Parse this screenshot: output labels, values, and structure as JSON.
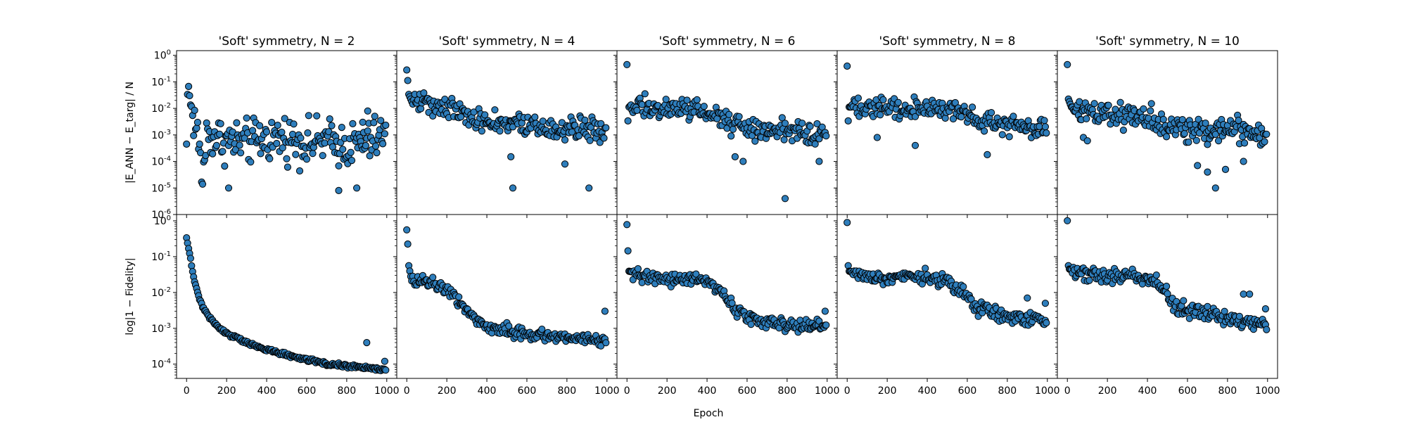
{
  "figure": {
    "xlabel": "Epoch",
    "marker_color": "#2e7ebc",
    "marker_edge_color": "#000000"
  },
  "chart_data": [
    {
      "type": "scatter",
      "row": "top",
      "title": "'Soft' symmetry, N = 2",
      "xlabel": "",
      "ylabel": "|E_ANN − E_targ| / N",
      "xlim": [
        -50,
        1050
      ],
      "ylim": [
        1e-06,
        1.5
      ],
      "yscale": "log",
      "xticks": [
        0,
        200,
        400,
        600,
        800,
        1000
      ],
      "yticks": [
        "10^0",
        "10^-1",
        "10^-2",
        "10^-3",
        "10^-4",
        "10^-5",
        "10^-6"
      ],
      "profile": [
        [
          0,
          0.0004
        ],
        [
          5,
          0.03
        ],
        [
          10,
          0.06
        ],
        [
          20,
          0.012
        ],
        [
          30,
          0.006
        ],
        [
          50,
          0.002
        ],
        [
          70,
          0.0001
        ],
        [
          80,
          2e-05
        ],
        [
          100,
          0.001
        ],
        [
          200,
          0.0006
        ],
        [
          300,
          0.0005
        ],
        [
          400,
          0.0007
        ],
        [
          500,
          0.0008
        ],
        [
          600,
          0.0005
        ],
        [
          700,
          0.0006
        ],
        [
          800,
          0.0004
        ],
        [
          900,
          0.0005
        ],
        [
          1000,
          0.0012
        ]
      ],
      "scatter_spread_decades": 2.5,
      "outliers": [
        [
          210,
          1e-05
        ],
        [
          760,
          8e-06
        ],
        [
          850,
          1e-05
        ],
        [
          880,
          0.003
        ],
        [
          905,
          0.008
        ]
      ]
    },
    {
      "type": "scatter",
      "row": "top",
      "title": "'Soft' symmetry, N = 4",
      "xlabel": "",
      "ylabel": "",
      "xlim": [
        -50,
        1050
      ],
      "ylim": [
        1e-06,
        1.5
      ],
      "yscale": "log",
      "xticks": [
        0,
        200,
        400,
        600,
        800,
        1000
      ],
      "yticks": [],
      "profile": [
        [
          0,
          0.25
        ],
        [
          5,
          0.1
        ],
        [
          10,
          0.03
        ],
        [
          20,
          0.02
        ],
        [
          100,
          0.018
        ],
        [
          200,
          0.012
        ],
        [
          300,
          0.006
        ],
        [
          400,
          0.003
        ],
        [
          500,
          0.0025
        ],
        [
          600,
          0.002
        ],
        [
          700,
          0.0018
        ],
        [
          800,
          0.0018
        ],
        [
          900,
          0.0018
        ],
        [
          1000,
          0.0018
        ]
      ],
      "scatter_spread_decades": 1.3,
      "outliers": [
        [
          520,
          0.00015
        ],
        [
          530,
          1e-05
        ],
        [
          790,
          8e-05
        ],
        [
          910,
          1e-05
        ]
      ]
    },
    {
      "type": "scatter",
      "row": "top",
      "title": "'Soft' symmetry, N = 6",
      "xlabel": "",
      "ylabel": "",
      "xlim": [
        -50,
        1050
      ],
      "ylim": [
        1e-06,
        1.5
      ],
      "yscale": "log",
      "xticks": [
        0,
        200,
        400,
        600,
        800,
        1000
      ],
      "yticks": [],
      "profile": [
        [
          0,
          0.4
        ],
        [
          5,
          0.003
        ],
        [
          10,
          0.01
        ],
        [
          20,
          0.012
        ],
        [
          200,
          0.01
        ],
        [
          400,
          0.008
        ],
        [
          500,
          0.003
        ],
        [
          600,
          0.002
        ],
        [
          700,
          0.0015
        ],
        [
          800,
          0.0015
        ],
        [
          1000,
          0.0012
        ]
      ],
      "scatter_spread_decades": 1.2,
      "outliers": [
        [
          540,
          0.00015
        ],
        [
          580,
          0.0001
        ],
        [
          790,
          4e-06
        ],
        [
          960,
          0.0001
        ]
      ]
    },
    {
      "type": "scatter",
      "row": "top",
      "title": "'Soft' symmetry, N = 8",
      "xlabel": "",
      "ylabel": "",
      "xlim": [
        -50,
        1050
      ],
      "ylim": [
        1e-06,
        1.5
      ],
      "yscale": "log",
      "xticks": [
        0,
        200,
        400,
        600,
        800,
        1000
      ],
      "yticks": [],
      "profile": [
        [
          0,
          0.35
        ],
        [
          5,
          0.003
        ],
        [
          10,
          0.01
        ],
        [
          100,
          0.01
        ],
        [
          300,
          0.01
        ],
        [
          500,
          0.01
        ],
        [
          600,
          0.006
        ],
        [
          700,
          0.003
        ],
        [
          800,
          0.0025
        ],
        [
          900,
          0.002
        ],
        [
          1000,
          0.002
        ]
      ],
      "scatter_spread_decades": 1.1,
      "outliers": [
        [
          150,
          0.0008
        ],
        [
          340,
          0.0004
        ],
        [
          700,
          0.00018
        ]
      ]
    },
    {
      "type": "scatter",
      "row": "top",
      "title": "'Soft' symmetry, N = 10",
      "xlabel": "",
      "ylabel": "",
      "xlim": [
        -50,
        1050
      ],
      "ylim": [
        1e-06,
        1.5
      ],
      "yscale": "log",
      "xticks": [
        0,
        200,
        400,
        600,
        800,
        1000
      ],
      "yticks": [],
      "profile": [
        [
          0,
          0.4
        ],
        [
          5,
          0.02
        ],
        [
          20,
          0.01
        ],
        [
          200,
          0.006
        ],
        [
          400,
          0.004
        ],
        [
          500,
          0.002
        ],
        [
          600,
          0.0015
        ],
        [
          700,
          0.0012
        ],
        [
          800,
          0.0015
        ],
        [
          900,
          0.0012
        ],
        [
          1000,
          0.001
        ]
      ],
      "scatter_spread_decades": 1.4,
      "outliers": [
        [
          80,
          0.0008
        ],
        [
          100,
          0.0006
        ],
        [
          650,
          7e-05
        ],
        [
          700,
          4e-05
        ],
        [
          740,
          1e-05
        ],
        [
          790,
          5e-05
        ],
        [
          880,
          0.0001
        ]
      ]
    },
    {
      "type": "scatter",
      "row": "bottom",
      "title": "",
      "xlabel": "",
      "ylabel": "log|1 − Fidelity|",
      "xlim": [
        -50,
        1050
      ],
      "ylim": [
        4e-05,
        1.5
      ],
      "yscale": "log",
      "xticks": [
        0,
        200,
        400,
        600,
        800,
        1000
      ],
      "yticks": [
        "10^0",
        "10^-1",
        "10^-2",
        "10^-3",
        "10^-4"
      ],
      "profile": [
        [
          0,
          0.3
        ],
        [
          10,
          0.15
        ],
        [
          20,
          0.08
        ],
        [
          40,
          0.02
        ],
        [
          60,
          0.008
        ],
        [
          80,
          0.004
        ],
        [
          100,
          0.0025
        ],
        [
          150,
          0.0012
        ],
        [
          200,
          0.0007
        ],
        [
          300,
          0.0004
        ],
        [
          400,
          0.00025
        ],
        [
          500,
          0.00018
        ],
        [
          600,
          0.00013
        ],
        [
          700,
          0.0001
        ],
        [
          800,
          9e-05
        ],
        [
          900,
          8e-05
        ],
        [
          1000,
          7e-05
        ]
      ],
      "scatter_spread_decades": 0.15,
      "outliers": [
        [
          900,
          0.0004
        ],
        [
          990,
          0.00012
        ]
      ]
    },
    {
      "type": "scatter",
      "row": "bottom",
      "title": "",
      "xlabel": "",
      "ylabel": "",
      "xlim": [
        -50,
        1050
      ],
      "ylim": [
        4e-05,
        1.5
      ],
      "yscale": "log",
      "xticks": [
        0,
        200,
        400,
        600,
        800,
        1000
      ],
      "yticks": [],
      "profile": [
        [
          0,
          0.5
        ],
        [
          5,
          0.2
        ],
        [
          10,
          0.05
        ],
        [
          20,
          0.025
        ],
        [
          100,
          0.02
        ],
        [
          200,
          0.013
        ],
        [
          250,
          0.007
        ],
        [
          300,
          0.003
        ],
        [
          350,
          0.0018
        ],
        [
          400,
          0.0012
        ],
        [
          500,
          0.0009
        ],
        [
          600,
          0.0007
        ],
        [
          700,
          0.0006
        ],
        [
          800,
          0.0006
        ],
        [
          900,
          0.0005
        ],
        [
          1000,
          0.0005
        ]
      ],
      "scatter_spread_decades": 0.5,
      "outliers": [
        [
          990,
          0.003
        ]
      ]
    },
    {
      "type": "scatter",
      "row": "bottom",
      "title": "",
      "xlabel": "",
      "ylabel": "",
      "xlim": [
        -50,
        1050
      ],
      "ylim": [
        4e-05,
        1.5
      ],
      "yscale": "log",
      "xticks": [
        0,
        200,
        400,
        600,
        800,
        1000
      ],
      "yticks": [],
      "profile": [
        [
          0,
          0.7
        ],
        [
          5,
          0.13
        ],
        [
          10,
          0.035
        ],
        [
          100,
          0.026
        ],
        [
          300,
          0.024
        ],
        [
          400,
          0.022
        ],
        [
          450,
          0.015
        ],
        [
          500,
          0.006
        ],
        [
          550,
          0.003
        ],
        [
          600,
          0.002
        ],
        [
          700,
          0.0014
        ],
        [
          800,
          0.0012
        ],
        [
          900,
          0.0012
        ],
        [
          1000,
          0.0012
        ]
      ],
      "scatter_spread_decades": 0.55,
      "outliers": [
        [
          990,
          0.003
        ]
      ]
    },
    {
      "type": "scatter",
      "row": "bottom",
      "title": "",
      "xlabel": "",
      "ylabel": "",
      "xlim": [
        -50,
        1050
      ],
      "ylim": [
        4e-05,
        1.5
      ],
      "yscale": "log",
      "xticks": [
        0,
        200,
        400,
        600,
        800,
        1000
      ],
      "yticks": [],
      "profile": [
        [
          0,
          0.8
        ],
        [
          5,
          0.05
        ],
        [
          10,
          0.035
        ],
        [
          100,
          0.028
        ],
        [
          300,
          0.027
        ],
        [
          400,
          0.026
        ],
        [
          500,
          0.02
        ],
        [
          600,
          0.008
        ],
        [
          650,
          0.004
        ],
        [
          700,
          0.003
        ],
        [
          800,
          0.002
        ],
        [
          900,
          0.0018
        ],
        [
          1000,
          0.0016
        ]
      ],
      "scatter_spread_decades": 0.6,
      "outliers": [
        [
          900,
          0.007
        ],
        [
          990,
          0.005
        ]
      ]
    },
    {
      "type": "scatter",
      "row": "bottom",
      "title": "",
      "xlabel": "",
      "ylabel": "",
      "xlim": [
        -50,
        1050
      ],
      "ylim": [
        4e-05,
        1.5
      ],
      "yscale": "log",
      "xticks": [
        0,
        200,
        400,
        600,
        800,
        1000
      ],
      "yticks": [],
      "profile": [
        [
          0,
          0.9
        ],
        [
          5,
          0.05
        ],
        [
          10,
          0.04
        ],
        [
          100,
          0.03
        ],
        [
          300,
          0.03
        ],
        [
          400,
          0.025
        ],
        [
          450,
          0.02
        ],
        [
          500,
          0.008
        ],
        [
          550,
          0.004
        ],
        [
          600,
          0.003
        ],
        [
          700,
          0.0025
        ],
        [
          800,
          0.002
        ],
        [
          900,
          0.0015
        ],
        [
          1000,
          0.0012
        ]
      ],
      "scatter_spread_decades": 0.6,
      "outliers": [
        [
          880,
          0.009
        ],
        [
          910,
          0.009
        ],
        [
          990,
          0.0035
        ]
      ]
    }
  ]
}
